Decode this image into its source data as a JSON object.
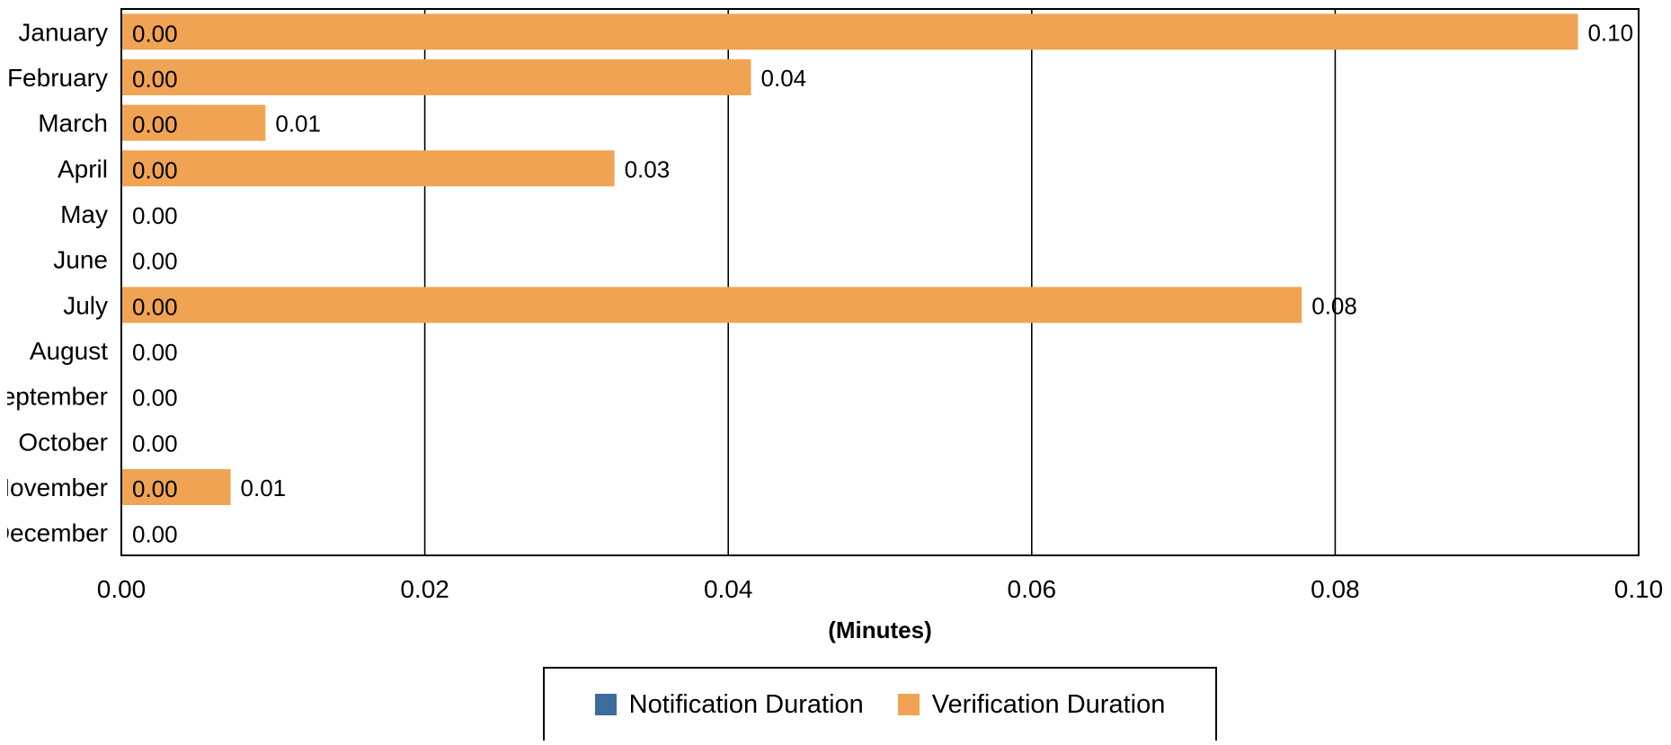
{
  "chart_data": {
    "type": "bar",
    "orientation": "horizontal",
    "categories": [
      "January",
      "February",
      "March",
      "April",
      "May",
      "June",
      "July",
      "August",
      "September",
      "October",
      "November",
      "December"
    ],
    "series": [
      {
        "name": "Notification Duration",
        "color": "#3c6b9e",
        "values": [
          0,
          0,
          0,
          0,
          0,
          0,
          0,
          0,
          0,
          0,
          0,
          0
        ],
        "labels": [
          "0.00",
          "0.00",
          "0.00",
          "0.00",
          "0.00",
          "0.00",
          "0.00",
          "0.00",
          "0.00",
          "0.00",
          "0.00",
          "0.00"
        ]
      },
      {
        "name": "Verification Duration",
        "color": "#f0a453",
        "values": [
          0.096,
          0.0415,
          0.0095,
          0.0325,
          0,
          0,
          0.0778,
          0,
          0,
          0,
          0.0072,
          0
        ],
        "labels": [
          "0.10",
          "0.04",
          "0.01",
          "0.03",
          "",
          "",
          "0.08",
          "",
          "",
          "",
          "0.01",
          ""
        ]
      }
    ],
    "xlabel": "(Minutes)",
    "ylabel": "",
    "xlim": [
      0,
      0.1
    ],
    "xticks": [
      0,
      0.02,
      0.04,
      0.06,
      0.08,
      0.1
    ],
    "xtick_labels": [
      "0.00",
      "0.02",
      "0.04",
      "0.06",
      "0.08",
      "0.10"
    ],
    "grid": true,
    "legend_position": "bottom"
  }
}
